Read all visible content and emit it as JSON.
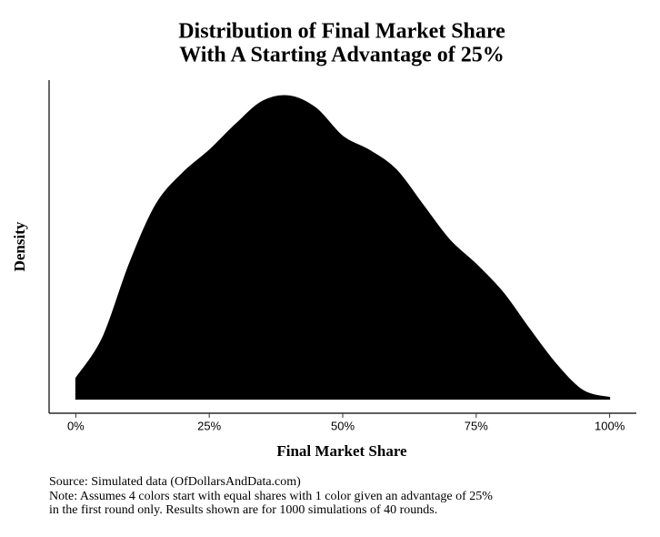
{
  "chart_data": {
    "type": "area",
    "title": [
      "Distribution of Final Market Share",
      "With A Starting Advantage of 25%"
    ],
    "x_label": "Final Market Share",
    "y_label": "Density",
    "x": [
      0,
      5,
      10,
      15,
      20,
      25,
      30,
      35,
      40,
      45,
      50,
      55,
      60,
      65,
      70,
      75,
      80,
      85,
      90,
      95,
      100
    ],
    "values": [
      0.12,
      0.35,
      0.77,
      1.11,
      1.29,
      1.42,
      1.57,
      1.7,
      1.73,
      1.66,
      1.5,
      1.42,
      1.31,
      1.11,
      0.91,
      0.77,
      0.61,
      0.4,
      0.2,
      0.05,
      0.01
    ],
    "color": "#000000",
    "xlim": [
      -5,
      105
    ],
    "ylim": [
      -0.08,
      1.82
    ],
    "xticks": [
      {
        "value": 0,
        "label": "0%"
      },
      {
        "value": 25,
        "label": "25%"
      },
      {
        "value": 50,
        "label": "50%"
      },
      {
        "value": 75,
        "label": "75%"
      },
      {
        "value": 100,
        "label": "100%"
      }
    ],
    "grid": false,
    "notes": [
      "Source: Simulated data (OfDollarsAndData.com)",
      "Note: Assumes 4 colors start with equal shares with 1 color given an advantage of 25%",
      "in the first round only. Results shown are for 1000 simulations of 40 rounds."
    ]
  }
}
